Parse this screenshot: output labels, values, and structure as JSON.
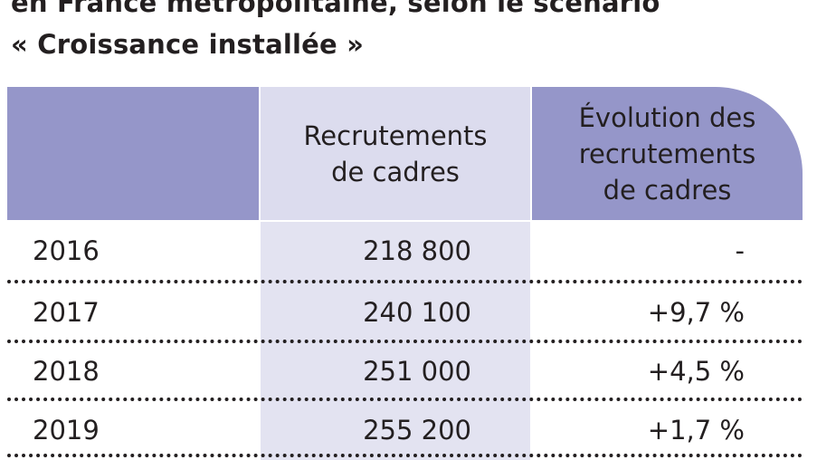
{
  "title": {
    "line1": "en France métropolitaine, selon le scénario",
    "line2": "« Croissance installée »"
  },
  "table": {
    "headers": {
      "first": "",
      "recruitments": "Recrutements\nde cadres",
      "evolution": "Évolution des\nrecrutements\nde cadres"
    },
    "rows": [
      {
        "year": "2016",
        "value": "218 800",
        "evolution": "-"
      },
      {
        "year": "2017",
        "value": "240 100",
        "evolution": "+9,7 %"
      },
      {
        "year": "2018",
        "value": "251 000",
        "evolution": "+4,5 %"
      },
      {
        "year": "2019",
        "value": "255 200",
        "evolution": "+1,7 %"
      }
    ]
  },
  "colors": {
    "header_dark": "#9596c9",
    "header_light": "#dcdcee",
    "column_band": "#e3e3f1",
    "text": "#231f20"
  }
}
